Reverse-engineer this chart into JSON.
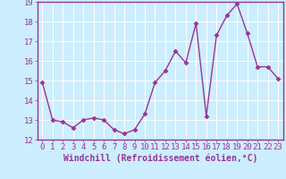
{
  "x": [
    0,
    1,
    2,
    3,
    4,
    5,
    6,
    7,
    8,
    9,
    10,
    11,
    12,
    13,
    14,
    15,
    16,
    17,
    18,
    19,
    20,
    21,
    22,
    23
  ],
  "y": [
    14.9,
    13.0,
    12.9,
    12.6,
    13.0,
    13.1,
    13.0,
    12.5,
    12.3,
    12.5,
    13.3,
    14.9,
    15.5,
    16.5,
    15.9,
    17.9,
    13.2,
    17.3,
    18.3,
    18.9,
    17.4,
    15.7,
    15.7,
    15.1
  ],
  "line_color": "#993399",
  "marker": "D",
  "marker_size": 2.5,
  "bg_color": "#cceeff",
  "grid_color": "#ffffff",
  "xlabel": "Windchill (Refroidissement éolien,°C)",
  "xlabel_color": "#993399",
  "tick_color": "#993399",
  "xlim_min": -0.5,
  "xlim_max": 23.5,
  "ylim_min": 12,
  "ylim_max": 19,
  "yticks": [
    12,
    13,
    14,
    15,
    16,
    17,
    18,
    19
  ],
  "xticks": [
    0,
    1,
    2,
    3,
    4,
    5,
    6,
    7,
    8,
    9,
    10,
    11,
    12,
    13,
    14,
    15,
    16,
    17,
    18,
    19,
    20,
    21,
    22,
    23
  ],
  "tick_fontsize": 6.5,
  "xlabel_fontsize": 7,
  "linewidth": 1.0
}
